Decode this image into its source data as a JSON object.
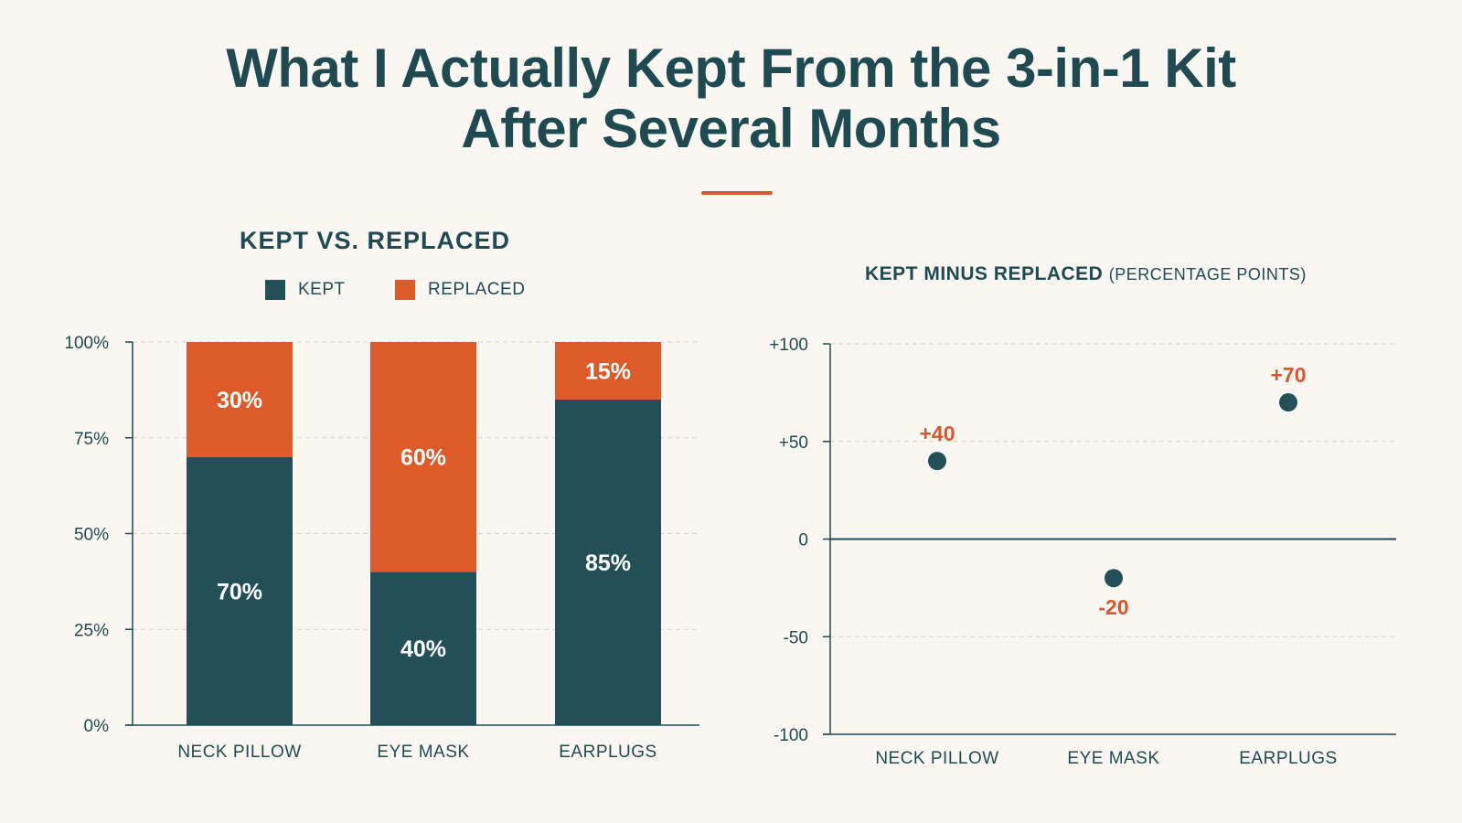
{
  "header": {
    "title_line1": "What I Actually Kept From the 3-in-1 Kit",
    "title_line2": "After Several Months"
  },
  "left_panel": {
    "title": "KEPT VS. REPLACED",
    "legend": [
      {
        "label": "KEPT",
        "color": "#234f58"
      },
      {
        "label": "REPLACED",
        "color": "#dd5a2b"
      }
    ]
  },
  "right_panel": {
    "title": "KEPT MINUS REPLACED",
    "subtitle": "(PERCENTAGE POINTS)"
  },
  "chart_data": [
    {
      "type": "bar",
      "stacked": true,
      "title": "KEPT VS. REPLACED",
      "categories": [
        "NECK PILLOW",
        "EYE MASK",
        "EARPLUGS"
      ],
      "series": [
        {
          "name": "KEPT",
          "values": [
            70,
            40,
            85
          ],
          "labels": [
            "70%",
            "40%",
            "85%"
          ],
          "color": "#234f58"
        },
        {
          "name": "REPLACED",
          "values": [
            30,
            60,
            15
          ],
          "labels": [
            "30%",
            "60%",
            "15%"
          ],
          "color": "#dd5a2b"
        }
      ],
      "ylim": [
        0,
        100
      ],
      "yticks": [
        0,
        25,
        50,
        75,
        100
      ],
      "ytick_labels": [
        "0%",
        "25%",
        "50%",
        "75%",
        "100%"
      ],
      "grid": true,
      "legend": "top"
    },
    {
      "type": "scatter",
      "title": "KEPT MINUS REPLACED (PERCENTAGE POINTS)",
      "categories": [
        "NECK PILLOW",
        "EYE MASK",
        "EARPLUGS"
      ],
      "values": [
        40,
        -20,
        70
      ],
      "labels": [
        "+40",
        "-20",
        "+70"
      ],
      "ylim": [
        -100,
        100
      ],
      "yticks": [
        -100,
        -50,
        0,
        50,
        100
      ],
      "ytick_labels": [
        "-100",
        "-50",
        "0",
        "+50",
        "+100"
      ],
      "grid": true,
      "colors": {
        "point": "#234f58",
        "label": "#d9582b"
      }
    }
  ]
}
